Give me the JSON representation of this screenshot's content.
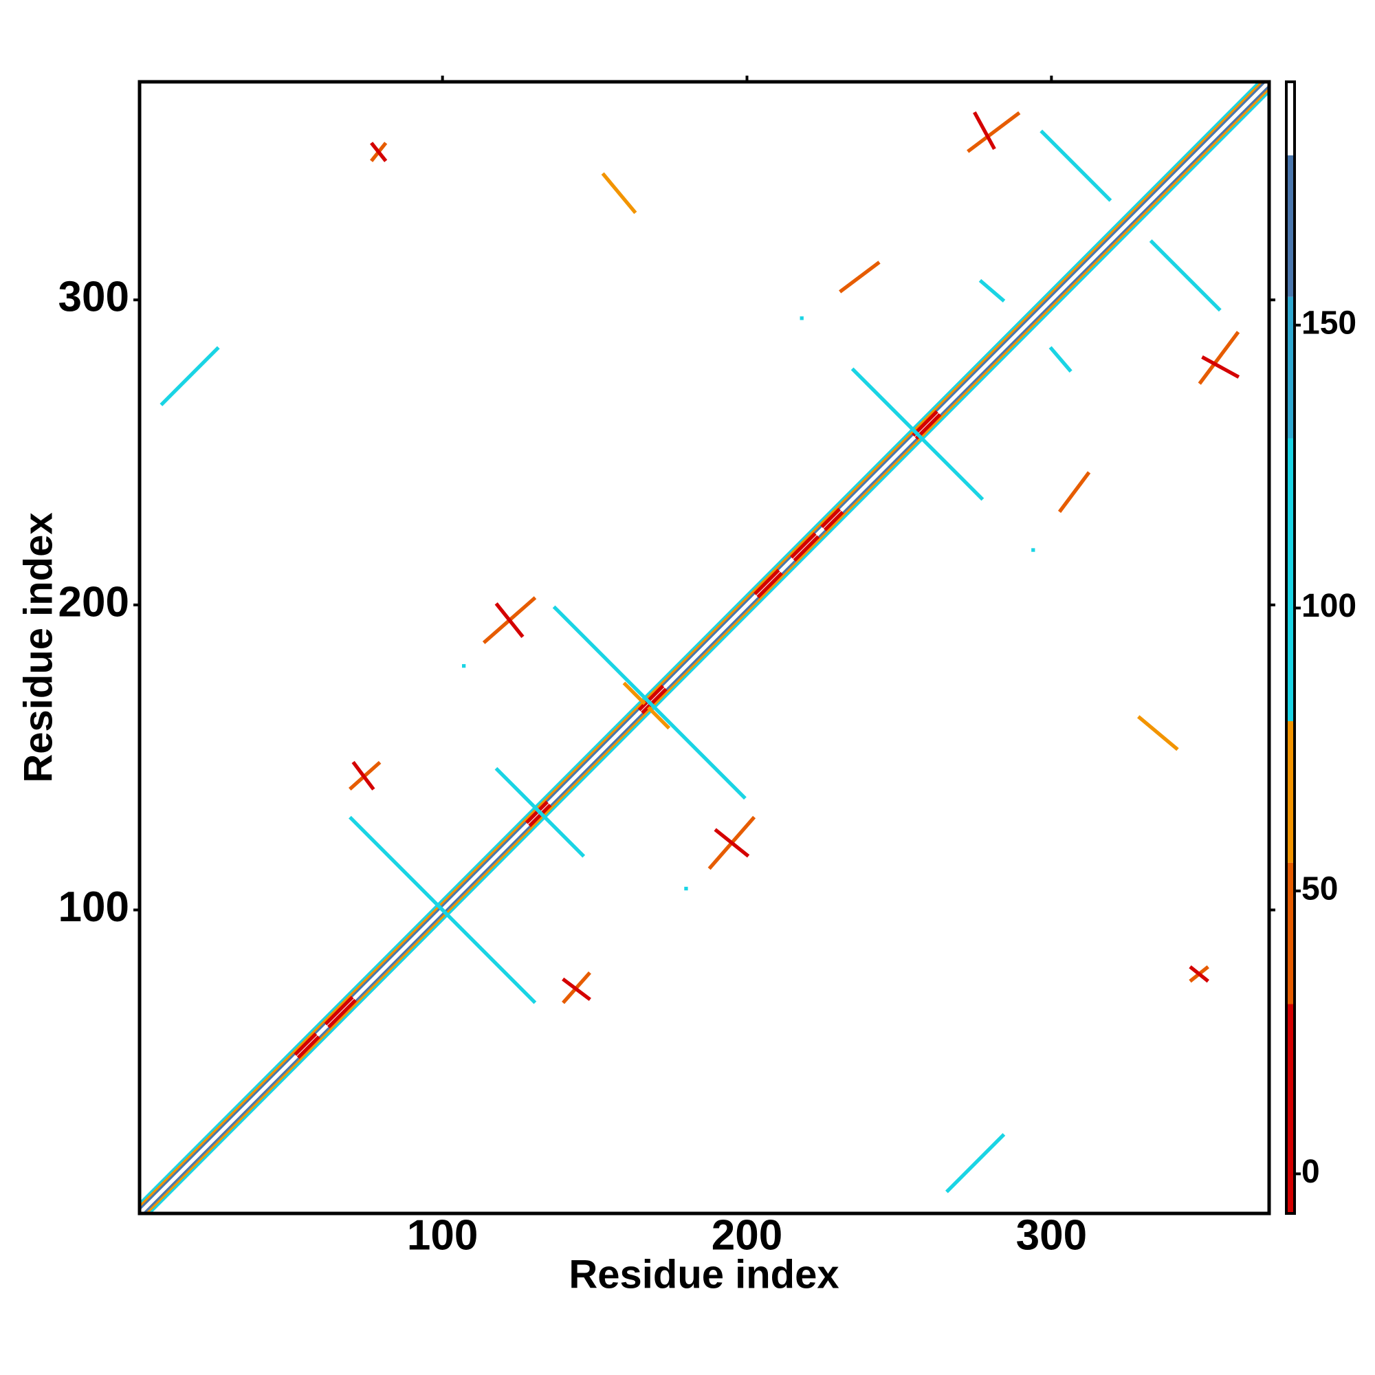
{
  "chart_data": {
    "type": "heatmap",
    "x_label": "Residue index",
    "y_label": "Residue index",
    "xlim": [
      0.5,
      371.5
    ],
    "ylim": [
      0.5,
      371.5
    ],
    "xticks": [
      100,
      200,
      300
    ],
    "yticks": [
      100,
      200,
      300
    ],
    "symmetric": true,
    "colorbar": {
      "lim": [
        -7,
        193
      ],
      "ticks": [
        0,
        50,
        100,
        150
      ],
      "bins": [
        -7,
        30,
        55,
        80,
        130,
        155,
        180,
        193
      ],
      "colors": [
        "#d40000",
        "#e65c00",
        "#f29400",
        "#1ad4e4",
        "#2fa8d0",
        "#4a76ad",
        "#ffffff"
      ]
    },
    "segments": [
      {
        "x": [
          1,
          368
        ],
        "y": [
          4,
          371
        ],
        "value": 95
      },
      {
        "x": [
          1,
          369
        ],
        "y": [
          3,
          371
        ],
        "value": 65
      },
      {
        "x": [
          1,
          370
        ],
        "y": [
          2,
          371
        ],
        "value": 165
      },
      {
        "x": [
          1,
          371
        ],
        "y": [
          1,
          371
        ],
        "value": 190
      },
      {
        "x": [
          52,
          58
        ],
        "y": [
          53,
          59
        ],
        "value": 10
      },
      {
        "x": [
          62,
          70
        ],
        "y": [
          63,
          71
        ],
        "value": 10
      },
      {
        "x": [
          128,
          134
        ],
        "y": [
          129,
          135
        ],
        "value": 10
      },
      {
        "x": [
          165,
          172
        ],
        "y": [
          166,
          173
        ],
        "value": 10
      },
      {
        "x": [
          203,
          210
        ],
        "y": [
          204,
          211
        ],
        "value": 10
      },
      {
        "x": [
          215,
          222
        ],
        "y": [
          216,
          223
        ],
        "value": 10
      },
      {
        "x": [
          225,
          230
        ],
        "y": [
          226,
          231
        ],
        "value": 10
      },
      {
        "x": [
          255,
          262
        ],
        "y": [
          256,
          263
        ],
        "value": 10
      },
      {
        "x": [
          77,
          81
        ],
        "y": [
          346,
          351
        ],
        "value": 55
      },
      {
        "x": [
          77,
          81
        ],
        "y": [
          351,
          346
        ],
        "value": 20
      },
      {
        "x": [
          153,
          163
        ],
        "y": [
          341,
          329
        ],
        "value": 60
      },
      {
        "x": [
          8,
          26
        ],
        "y": [
          266,
          284
        ],
        "value": 100
      },
      {
        "x": [
          273,
          289
        ],
        "y": [
          349,
          361
        ],
        "value": 55
      },
      {
        "x": [
          275,
          281
        ],
        "y": [
          361,
          350
        ],
        "value": 15
      },
      {
        "x": [
          297,
          319
        ],
        "y": [
          355,
          333
        ],
        "value": 110
      },
      {
        "x": [
          231,
          243
        ],
        "y": [
          303,
          312
        ],
        "value": 55
      },
      {
        "x": [
          277,
          284
        ],
        "y": [
          306,
          300
        ],
        "value": 110
      },
      {
        "x": [
          235,
          256
        ],
        "y": [
          277,
          256
        ],
        "value": 100
      },
      {
        "x": [
          114,
          130
        ],
        "y": [
          188,
          202
        ],
        "value": 55
      },
      {
        "x": [
          118,
          126
        ],
        "y": [
          200,
          190
        ],
        "value": 10
      },
      {
        "x": [
          137,
          168
        ],
        "y": [
          199,
          168
        ],
        "value": 100
      },
      {
        "x": [
          160,
          166
        ],
        "y": [
          174,
          168
        ],
        "value": 60
      },
      {
        "x": [
          70,
          79
        ],
        "y": [
          140,
          148
        ],
        "value": 55
      },
      {
        "x": [
          71,
          77
        ],
        "y": [
          148,
          140
        ],
        "value": 15
      },
      {
        "x": [
          70,
          100
        ],
        "y": [
          130,
          100
        ],
        "value": 100
      },
      {
        "x": [
          118,
          132
        ],
        "y": [
          146,
          132
        ],
        "value": 100
      },
      {
        "x": [
          107,
          107
        ],
        "y": [
          180,
          180
        ],
        "value": 100
      },
      {
        "x": [
          218,
          218
        ],
        "y": [
          294,
          294
        ],
        "value": 100
      }
    ]
  }
}
